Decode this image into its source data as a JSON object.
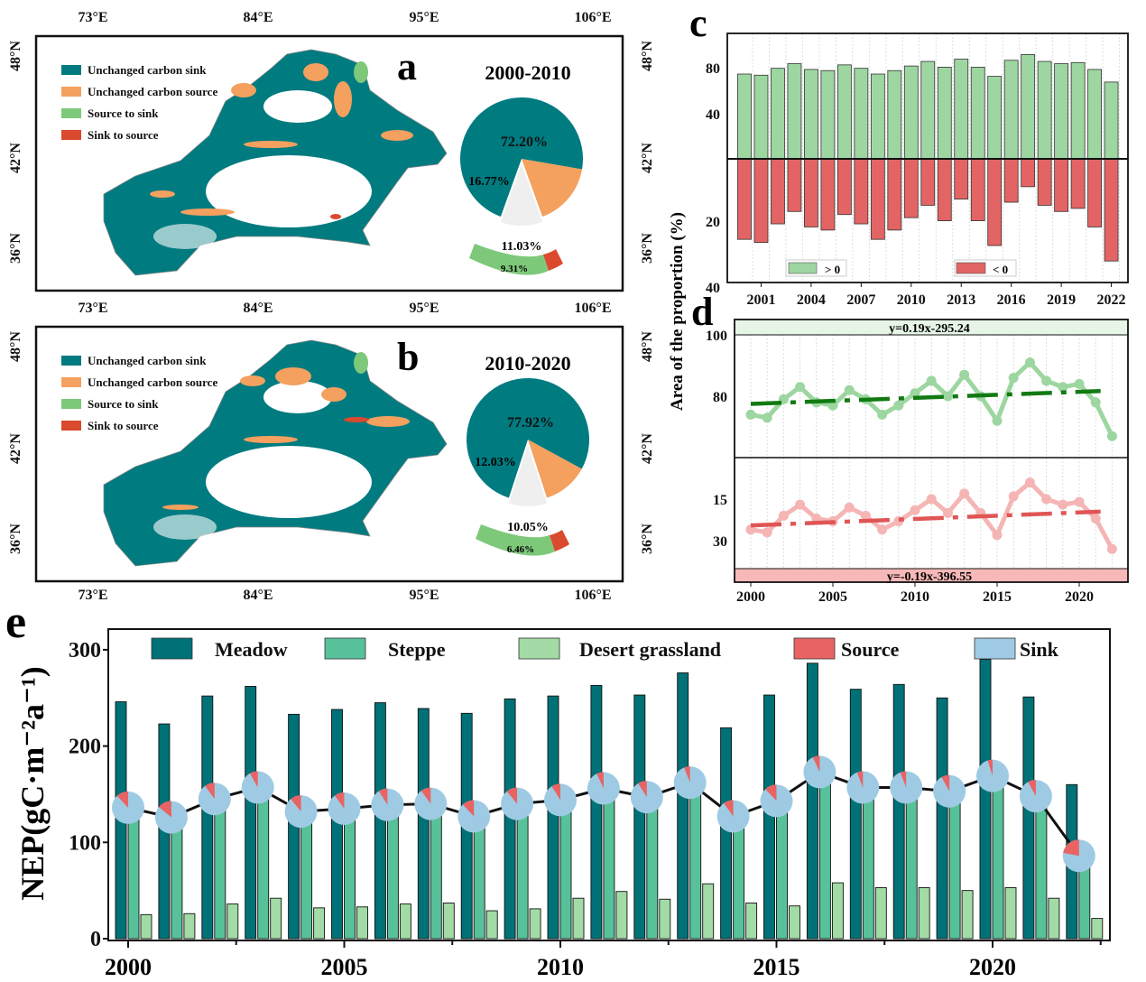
{
  "colors": {
    "unchanged_sink": "#007b80",
    "unchanged_source": "#f4a05f",
    "source_to_sink": "#7ec87a",
    "sink_to_source": "#d94a2f",
    "positive": "#9dd6a0",
    "negative": "#e36464",
    "meadow": "#007176",
    "steppe": "#57c19a",
    "desert": "#a2dba5",
    "pie_source": "#e86464",
    "pie_sink": "#9ecbe3",
    "trend_pos": "#127a12",
    "trend_neg": "#e05555"
  },
  "maps": {
    "lon_ticks": [
      "73°E",
      "84°E",
      "95°E",
      "106°E"
    ],
    "lat_ticks": [
      "48°N",
      "42°N",
      "36°N"
    ],
    "legend": [
      "Unchanged carbon sink",
      "Unchanged carbon source",
      "Source to sink",
      "Sink to source"
    ],
    "panels": [
      {
        "letter": "a",
        "period": "2000-2010",
        "pie": {
          "unchanged_sink": 72.2,
          "unchanged_source": 16.77,
          "changed": 11.03,
          "source_to_sink": 9.31
        },
        "labels": {
          "unchanged_sink": "72.20%",
          "unchanged_source": "16.77%",
          "changed": "11.03%",
          "source_to_sink": "9.31%"
        }
      },
      {
        "letter": "b",
        "period": "2010-2020",
        "pie": {
          "unchanged_sink": 77.92,
          "unchanged_source": 12.03,
          "changed": 10.05,
          "source_to_sink": 6.46
        },
        "labels": {
          "unchanged_sink": "77.92%",
          "unchanged_source": "12.03%",
          "changed": "10.05%",
          "source_to_sink": "6.46%"
        }
      }
    ]
  },
  "chart_data": [
    {
      "panel": "c",
      "type": "bar",
      "x": [
        2000,
        2001,
        2002,
        2003,
        2004,
        2005,
        2006,
        2007,
        2008,
        2009,
        2010,
        2011,
        2012,
        2013,
        2014,
        2015,
        2016,
        2017,
        2018,
        2019,
        2020,
        2021,
        2022
      ],
      "xticks": [
        "2001",
        "2004",
        "2007",
        "2010",
        "2013",
        "2016",
        "2019",
        "2022"
      ],
      "yticks_pos": [
        "80",
        "40"
      ],
      "yticks_neg": [
        "20",
        "40"
      ],
      "series": [
        {
          "name": "> 0",
          "values": [
            74,
            73,
            79,
            83,
            78,
            77,
            82,
            79,
            74,
            77,
            81,
            85,
            80,
            87,
            80,
            72,
            86,
            91,
            85,
            83,
            84,
            78,
            67
          ]
        },
        {
          "name": "< 0",
          "values": [
            26,
            27,
            21,
            17,
            22,
            23,
            18,
            21,
            26,
            23,
            19,
            15,
            20,
            13,
            20,
            28,
            14,
            9,
            15,
            17,
            16,
            22,
            33
          ]
        }
      ]
    },
    {
      "panel": "d",
      "type": "line",
      "ylabel": "Area of the proportion (%)",
      "xticks": [
        "2000",
        "2005",
        "2010",
        "2015",
        "2020"
      ],
      "yticks_top": [
        "100",
        "80"
      ],
      "yticks_bottom": [
        "15",
        "30"
      ],
      "equations": {
        "positive": "y=0.19x-295.24",
        "negative": "y=-0.19x-396.55"
      }
    },
    {
      "panel": "e",
      "type": "bar",
      "ylabel": "NEP(gC·m⁻²a⁻¹)",
      "ylim": [
        0,
        320
      ],
      "yticks": [
        "0",
        "100",
        "200",
        "300"
      ],
      "xticks": [
        "2000",
        "2005",
        "2010",
        "2015",
        "2020"
      ],
      "x": [
        2000,
        2001,
        2002,
        2003,
        2004,
        2005,
        2006,
        2007,
        2008,
        2009,
        2010,
        2011,
        2012,
        2013,
        2014,
        2015,
        2016,
        2017,
        2018,
        2019,
        2020,
        2021,
        2022
      ],
      "series": [
        {
          "name": "Meadow",
          "values": [
            246,
            223,
            252,
            262,
            233,
            238,
            245,
            239,
            234,
            249,
            252,
            263,
            253,
            276,
            219,
            253,
            286,
            259,
            264,
            250,
            290,
            251,
            160
          ]
        },
        {
          "name": "Steppe",
          "values": [
            131,
            121,
            140,
            152,
            127,
            130,
            134,
            135,
            122,
            135,
            139,
            151,
            142,
            157,
            122,
            138,
            168,
            152,
            152,
            148,
            164,
            143,
            81
          ]
        },
        {
          "name": "Desert  grassland",
          "values": [
            25,
            26,
            36,
            42,
            32,
            33,
            36,
            37,
            29,
            31,
            42,
            49,
            41,
            57,
            37,
            34,
            58,
            53,
            53,
            50,
            53,
            42,
            21
          ]
        }
      ],
      "line": {
        "values": [
          136,
          126,
          145,
          157,
          132,
          135,
          139,
          140,
          127,
          140,
          144,
          156,
          147,
          162,
          127,
          143,
          173,
          157,
          157,
          153,
          169,
          148,
          86
        ]
      },
      "pies": {
        "legend": [
          "Source",
          "Sink"
        ],
        "source_pct": [
          12,
          14,
          10,
          8,
          11,
          10,
          9,
          10,
          12,
          11,
          9,
          7,
          9,
          6,
          10,
          12,
          7,
          6,
          6,
          8,
          5,
          8,
          22
        ]
      }
    }
  ]
}
